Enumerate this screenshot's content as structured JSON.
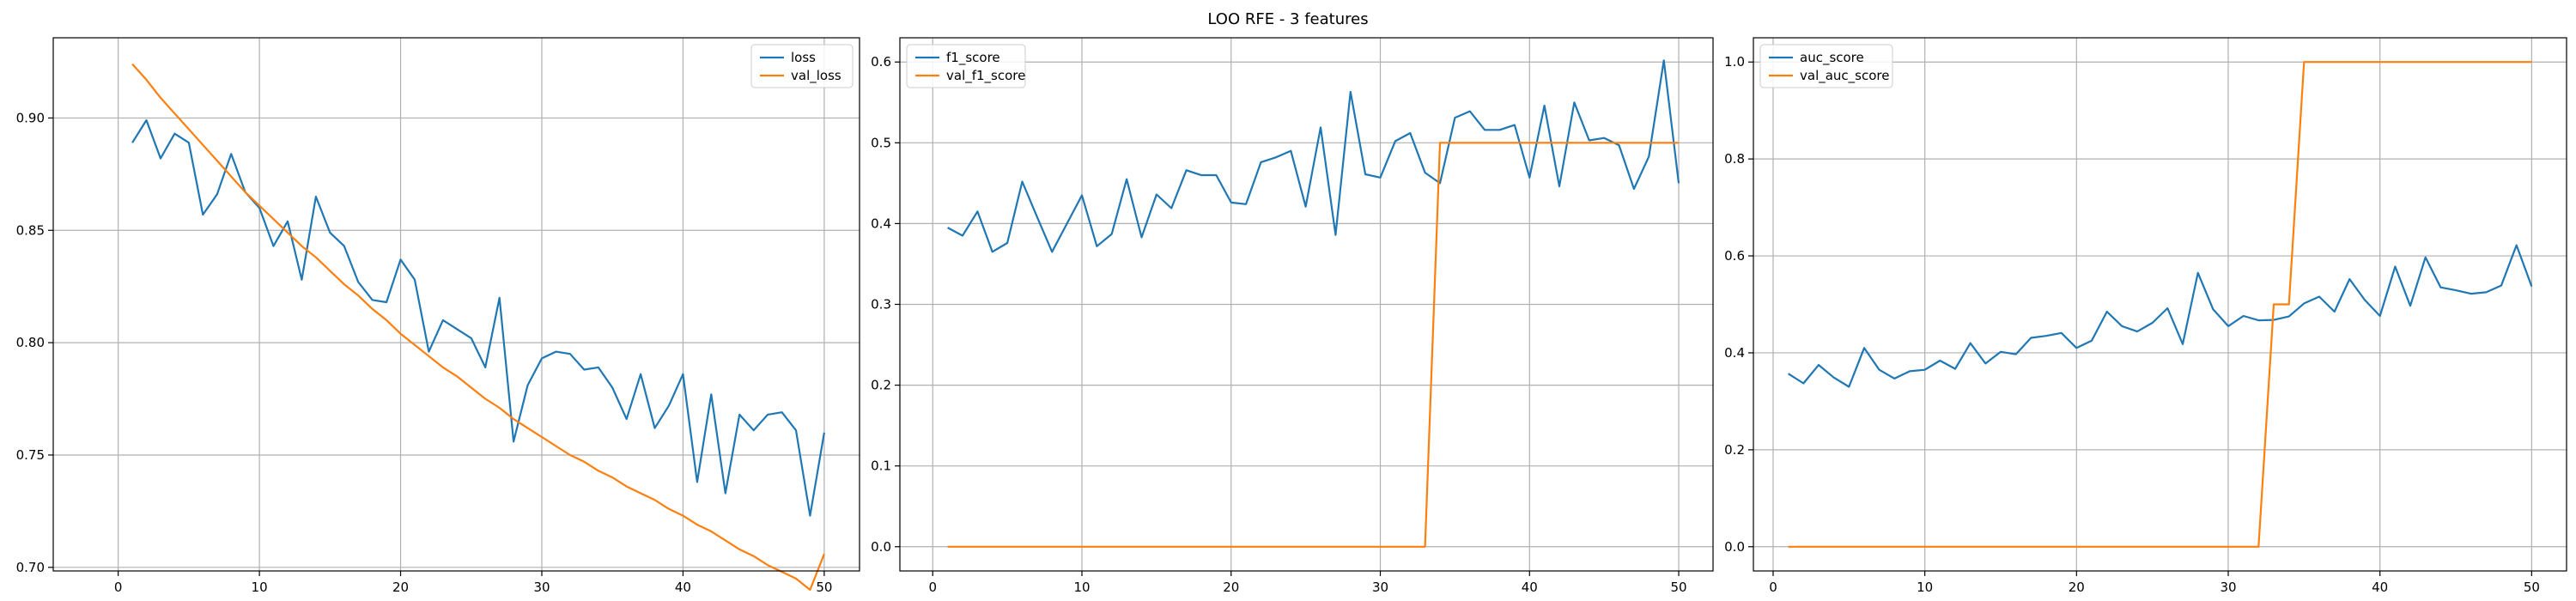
{
  "suptitle": "LOO RFE - 3 features",
  "colors": {
    "series_1": "#1f77b4",
    "series_2": "#ff7f0e",
    "grid": "#b0b0b0",
    "frame": "#000000"
  },
  "chart_data": [
    {
      "type": "line",
      "grid": true,
      "legend_placement": "top-right",
      "xlim": [
        -4.6,
        52.5
      ],
      "ylim": [
        0.6984,
        0.9357
      ],
      "xticks": [
        0,
        10,
        20,
        30,
        40,
        50
      ],
      "xtick_labels": [
        "0",
        "10",
        "20",
        "30",
        "40",
        "50"
      ],
      "yticks": [
        0.7,
        0.75,
        0.8,
        0.85,
        0.9
      ],
      "ytick_labels": [
        "0.70",
        "0.75",
        "0.80",
        "0.85",
        "0.90"
      ],
      "series": [
        {
          "name": "loss",
          "color": "#1f77b4",
          "x": [
            1,
            2,
            3,
            4,
            5,
            6,
            7,
            8,
            9,
            10,
            11,
            12,
            13,
            14,
            15,
            16,
            17,
            18,
            19,
            20,
            21,
            22,
            23,
            24,
            25,
            26,
            27,
            28,
            29,
            30,
            31,
            32,
            33,
            34,
            35,
            36,
            37,
            38,
            39,
            40,
            41,
            42,
            43,
            44,
            45,
            46,
            47,
            48,
            49,
            50
          ],
          "y": [
            0.889,
            0.899,
            0.882,
            0.893,
            0.889,
            0.857,
            0.866,
            0.884,
            0.867,
            0.86,
            0.843,
            0.854,
            0.828,
            0.865,
            0.849,
            0.843,
            0.827,
            0.819,
            0.818,
            0.837,
            0.828,
            0.796,
            0.81,
            0.806,
            0.802,
            0.789,
            0.82,
            0.756,
            0.781,
            0.793,
            0.796,
            0.795,
            0.788,
            0.789,
            0.78,
            0.766,
            0.786,
            0.762,
            0.772,
            0.786,
            0.738,
            0.777,
            0.733,
            0.768,
            0.761,
            0.768,
            0.769,
            0.761,
            0.723,
            0.76
          ]
        },
        {
          "name": "val_loss",
          "color": "#ff7f0e",
          "x": [
            1,
            2,
            3,
            4,
            5,
            6,
            7,
            8,
            9,
            10,
            11,
            12,
            13,
            14,
            15,
            16,
            17,
            18,
            19,
            20,
            21,
            22,
            23,
            24,
            25,
            26,
            27,
            28,
            29,
            30,
            31,
            32,
            33,
            34,
            35,
            36,
            37,
            38,
            39,
            40,
            41,
            42,
            43,
            44,
            45,
            46,
            47,
            48,
            49,
            50
          ],
          "y": [
            0.924,
            0.917,
            0.909,
            0.902,
            0.895,
            0.888,
            0.881,
            0.874,
            0.867,
            0.861,
            0.855,
            0.849,
            0.843,
            0.838,
            0.832,
            0.826,
            0.821,
            0.815,
            0.81,
            0.804,
            0.799,
            0.794,
            0.789,
            0.785,
            0.78,
            0.775,
            0.771,
            0.766,
            0.762,
            0.758,
            0.754,
            0.75,
            0.747,
            0.743,
            0.74,
            0.736,
            0.733,
            0.73,
            0.726,
            0.723,
            0.719,
            0.716,
            0.712,
            0.708,
            0.705,
            0.701,
            0.698,
            0.695,
            0.69,
            0.706
          ]
        }
      ]
    },
    {
      "type": "line",
      "grid": true,
      "legend_placement": "top-left",
      "xlim": [
        -2.2,
        52.3
      ],
      "ylim": [
        -0.03,
        0.63
      ],
      "xticks": [
        0,
        10,
        20,
        30,
        40,
        50
      ],
      "xtick_labels": [
        "0",
        "10",
        "20",
        "30",
        "40",
        "50"
      ],
      "yticks": [
        0.0,
        0.1,
        0.2,
        0.3,
        0.4,
        0.5,
        0.6
      ],
      "ytick_labels": [
        "0.0",
        "0.1",
        "0.2",
        "0.3",
        "0.4",
        "0.5",
        "0.6"
      ],
      "series": [
        {
          "name": "f1_score",
          "color": "#1f77b4",
          "x": [
            1,
            2,
            3,
            4,
            5,
            6,
            7,
            8,
            9,
            10,
            11,
            12,
            13,
            14,
            15,
            16,
            17,
            18,
            19,
            20,
            21,
            22,
            23,
            24,
            25,
            26,
            27,
            28,
            29,
            30,
            31,
            32,
            33,
            34,
            35,
            36,
            37,
            38,
            39,
            40,
            41,
            42,
            43,
            44,
            45,
            46,
            47,
            48,
            49,
            50
          ],
          "y": [
            0.395,
            0.385,
            0.415,
            0.365,
            0.376,
            0.452,
            0.408,
            0.365,
            0.4,
            0.435,
            0.372,
            0.387,
            0.455,
            0.383,
            0.436,
            0.419,
            0.466,
            0.46,
            0.46,
            0.426,
            0.424,
            0.476,
            0.482,
            0.49,
            0.421,
            0.519,
            0.386,
            0.563,
            0.461,
            0.457,
            0.502,
            0.512,
            0.463,
            0.45,
            0.531,
            0.539,
            0.516,
            0.516,
            0.522,
            0.457,
            0.546,
            0.446,
            0.55,
            0.503,
            0.506,
            0.497,
            0.443,
            0.483,
            0.602,
            0.45
          ]
        },
        {
          "name": "val_f1_score",
          "color": "#ff7f0e",
          "x": [
            1,
            2,
            3,
            4,
            5,
            6,
            7,
            8,
            9,
            10,
            11,
            12,
            13,
            14,
            15,
            16,
            17,
            18,
            19,
            20,
            21,
            22,
            23,
            24,
            25,
            26,
            27,
            28,
            29,
            30,
            31,
            32,
            33,
            34,
            35,
            36,
            37,
            38,
            39,
            40,
            41,
            42,
            43,
            44,
            45,
            46,
            47,
            48,
            49,
            50
          ],
          "y": [
            0,
            0,
            0,
            0,
            0,
            0,
            0,
            0,
            0,
            0,
            0,
            0,
            0,
            0,
            0,
            0,
            0,
            0,
            0,
            0,
            0,
            0,
            0,
            0,
            0,
            0,
            0,
            0,
            0,
            0,
            0,
            0,
            0,
            0.5,
            0.5,
            0.5,
            0.5,
            0.5,
            0.5,
            0.5,
            0.5,
            0.5,
            0.5,
            0.5,
            0.5,
            0.5,
            0.5,
            0.5,
            0.5,
            0.5
          ]
        }
      ]
    },
    {
      "type": "line",
      "grid": true,
      "legend_placement": "top-left",
      "xlim": [
        -1.3,
        52.3
      ],
      "ylim": [
        -0.05,
        1.05
      ],
      "xticks": [
        0,
        10,
        20,
        30,
        40,
        50
      ],
      "xtick_labels": [
        "0",
        "10",
        "20",
        "30",
        "40",
        "50"
      ],
      "yticks": [
        0.0,
        0.2,
        0.4,
        0.6,
        0.8,
        1.0
      ],
      "ytick_labels": [
        "0.0",
        "0.2",
        "0.4",
        "0.6",
        "0.8",
        "1.0"
      ],
      "series": [
        {
          "name": "auc_score",
          "color": "#1f77b4",
          "x": [
            1,
            2,
            3,
            4,
            5,
            6,
            7,
            8,
            9,
            10,
            11,
            12,
            13,
            14,
            15,
            16,
            17,
            18,
            19,
            20,
            21,
            22,
            23,
            24,
            25,
            26,
            27,
            28,
            29,
            30,
            31,
            32,
            33,
            34,
            35,
            36,
            37,
            38,
            39,
            40,
            41,
            42,
            43,
            44,
            45,
            46,
            47,
            48,
            49,
            50
          ],
          "y": [
            0.357,
            0.337,
            0.375,
            0.349,
            0.33,
            0.41,
            0.365,
            0.347,
            0.362,
            0.365,
            0.384,
            0.367,
            0.42,
            0.378,
            0.402,
            0.397,
            0.431,
            0.435,
            0.441,
            0.41,
            0.425,
            0.485,
            0.455,
            0.444,
            0.462,
            0.492,
            0.418,
            0.565,
            0.49,
            0.455,
            0.476,
            0.467,
            0.468,
            0.475,
            0.502,
            0.516,
            0.485,
            0.552,
            0.509,
            0.476,
            0.578,
            0.497,
            0.597,
            0.535,
            0.529,
            0.522,
            0.525,
            0.539,
            0.622,
            0.537
          ]
        },
        {
          "name": "val_auc_score",
          "color": "#ff7f0e",
          "x": [
            1,
            2,
            3,
            4,
            5,
            6,
            7,
            8,
            9,
            10,
            11,
            12,
            13,
            14,
            15,
            16,
            17,
            18,
            19,
            20,
            21,
            22,
            23,
            24,
            25,
            26,
            27,
            28,
            29,
            30,
            31,
            32,
            33,
            34,
            35,
            36,
            37,
            38,
            39,
            40,
            41,
            42,
            43,
            44,
            45,
            46,
            47,
            48,
            49,
            50
          ],
          "y": [
            0,
            0,
            0,
            0,
            0,
            0,
            0,
            0,
            0,
            0,
            0,
            0,
            0,
            0,
            0,
            0,
            0,
            0,
            0,
            0,
            0,
            0,
            0,
            0,
            0,
            0,
            0,
            0,
            0,
            0,
            0,
            0,
            0.5,
            0.5,
            1,
            1,
            1,
            1,
            1,
            1,
            1,
            1,
            1,
            1,
            1,
            1,
            1,
            1,
            1,
            1
          ]
        }
      ]
    }
  ]
}
